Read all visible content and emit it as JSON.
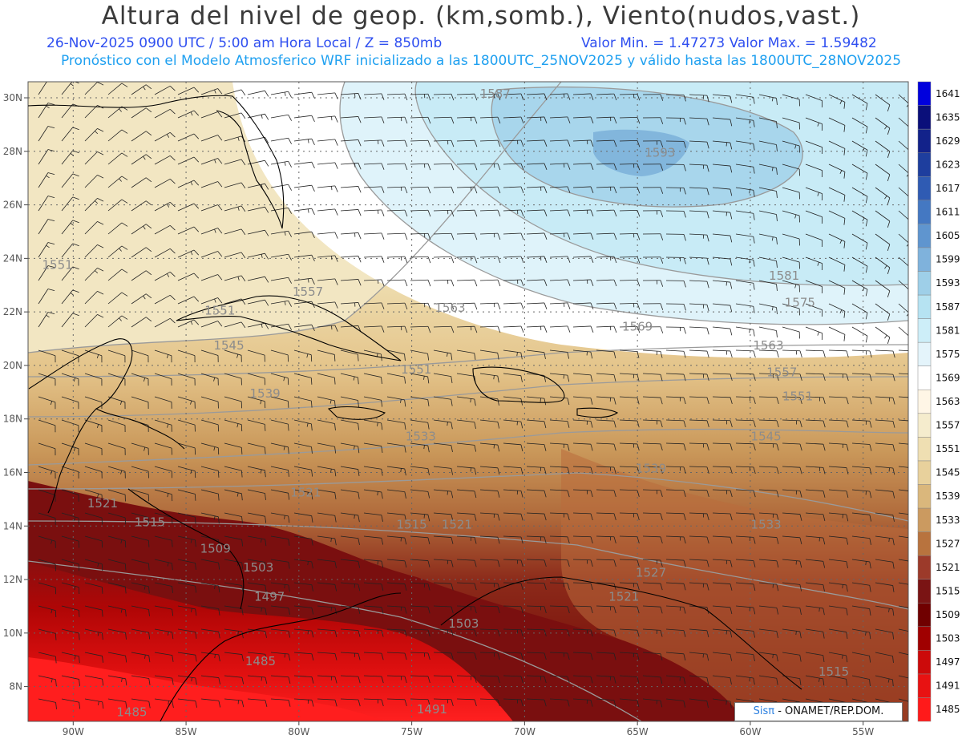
{
  "title": "Altura del nivel de geop. (km,somb.), Viento(nudos,vast.)",
  "subtitle_left": "26-Nov-2025  0900 UTC / 5:00 am Hora Local / Z = 850mb",
  "subtitle_right": "Valor Min. = 1.47273  Valor Max. = 1.59482",
  "subtitle2": "Pronóstico con el Modelo Atmosferico WRF inicializado a las 1800UTC_25NOV2025 y válido hasta las  1800UTC_28NOV2025",
  "map": {
    "lon_range": [
      -92,
      -53
    ],
    "lat_range": [
      6.7,
      30.6
    ],
    "lon_ticks": [
      {
        "lon": -90,
        "label": "90W"
      },
      {
        "lon": -85,
        "label": "85W"
      },
      {
        "lon": -80,
        "label": "80W"
      },
      {
        "lon": -75,
        "label": "75W"
      },
      {
        "lon": -70,
        "label": "70W"
      },
      {
        "lon": -65,
        "label": "65W"
      },
      {
        "lon": -60,
        "label": "60W"
      },
      {
        "lon": -55,
        "label": "55W"
      }
    ],
    "lat_ticks": [
      {
        "lat": 8,
        "label": "8N"
      },
      {
        "lat": 10,
        "label": "10N"
      },
      {
        "lat": 12,
        "label": "12N"
      },
      {
        "lat": 14,
        "label": "14N"
      },
      {
        "lat": 16,
        "label": "16N"
      },
      {
        "lat": 18,
        "label": "18N"
      },
      {
        "lat": 20,
        "label": "20N"
      },
      {
        "lat": 22,
        "label": "22N"
      },
      {
        "lat": 24,
        "label": "24N"
      },
      {
        "lat": 26,
        "label": "26N"
      },
      {
        "lat": 28,
        "label": "28N"
      },
      {
        "lat": 30,
        "label": "30N"
      }
    ],
    "contour_labels": [
      {
        "text": "1587",
        "lon": -71.3,
        "lat": 30.0
      },
      {
        "text": "1593",
        "lon": -64.0,
        "lat": 27.8
      },
      {
        "text": "1581",
        "lon": -58.5,
        "lat": 23.2
      },
      {
        "text": "1575",
        "lon": -57.8,
        "lat": 22.2
      },
      {
        "text": "1569",
        "lon": -65.0,
        "lat": 21.3
      },
      {
        "text": "1563",
        "lon": -59.2,
        "lat": 20.6
      },
      {
        "text": "1557",
        "lon": -58.6,
        "lat": 19.6
      },
      {
        "text": "1551",
        "lon": -57.9,
        "lat": 18.7
      },
      {
        "text": "1545",
        "lon": -59.3,
        "lat": 17.2
      },
      {
        "text": "1539",
        "lon": -64.4,
        "lat": 16.0
      },
      {
        "text": "1533",
        "lon": -59.3,
        "lat": 13.9
      },
      {
        "text": "1527",
        "lon": -64.4,
        "lat": 12.1
      },
      {
        "text": "1521",
        "lon": -65.6,
        "lat": 11.2
      },
      {
        "text": "1515",
        "lon": -56.3,
        "lat": 8.4
      },
      {
        "text": "1551",
        "lon": -90.7,
        "lat": 23.6
      },
      {
        "text": "1557",
        "lon": -79.6,
        "lat": 22.6
      },
      {
        "text": "1551",
        "lon": -83.5,
        "lat": 21.9
      },
      {
        "text": "1545",
        "lon": -83.1,
        "lat": 20.6
      },
      {
        "text": "1539",
        "lon": -81.5,
        "lat": 18.8
      },
      {
        "text": "1563",
        "lon": -73.3,
        "lat": 22.0
      },
      {
        "text": "1551",
        "lon": -74.8,
        "lat": 19.7
      },
      {
        "text": "1533",
        "lon": -74.6,
        "lat": 17.2
      },
      {
        "text": "1521",
        "lon": -79.7,
        "lat": 15.1
      },
      {
        "text": "1521",
        "lon": -88.7,
        "lat": 14.7
      },
      {
        "text": "1515",
        "lon": -86.6,
        "lat": 14.0
      },
      {
        "text": "1515",
        "lon": -75.0,
        "lat": 13.9
      },
      {
        "text": "1521",
        "lon": -73.0,
        "lat": 13.9
      },
      {
        "text": "1509",
        "lon": -83.7,
        "lat": 13.0
      },
      {
        "text": "1503",
        "lon": -81.8,
        "lat": 12.3
      },
      {
        "text": "1497",
        "lon": -81.3,
        "lat": 11.2
      },
      {
        "text": "1503",
        "lon": -72.7,
        "lat": 10.2
      },
      {
        "text": "1485",
        "lon": -81.7,
        "lat": 8.8
      },
      {
        "text": "1485",
        "lon": -87.4,
        "lat": 6.9
      },
      {
        "text": "1491",
        "lon": -74.1,
        "lat": 7.0
      }
    ]
  },
  "colorbar": {
    "levels": [
      "1485",
      "1491",
      "1497",
      "1503",
      "1509",
      "1515",
      "1521",
      "1527",
      "1533",
      "1539",
      "1545",
      "1551",
      "1557",
      "1563",
      "1569",
      "1575",
      "1581",
      "1587",
      "1593",
      "1599",
      "1605",
      "1611",
      "1617",
      "1623",
      "1629",
      "1635",
      "1641"
    ],
    "colors": [
      "#ff1a1a",
      "#e81212",
      "#cc0a0a",
      "#a00000",
      "#700000",
      "#7a1414",
      "#9c3a2a",
      "#b8733e",
      "#cb9a60",
      "#dab77c",
      "#e8d19c",
      "#efdfb2",
      "#f5eccd",
      "#fff6e6",
      "#ffffff",
      "#e4f4fb",
      "#cdeef8",
      "#b6e3f2",
      "#9ecfe8",
      "#7fb2dc",
      "#5f95cf",
      "#4478c2",
      "#2f5bb3",
      "#1e3e9e",
      "#12228a",
      "#0a0f7a",
      "#0000dd"
    ]
  },
  "credit": {
    "brand": "Sisπ",
    "org": " - ONAMET/REP.DOM."
  }
}
